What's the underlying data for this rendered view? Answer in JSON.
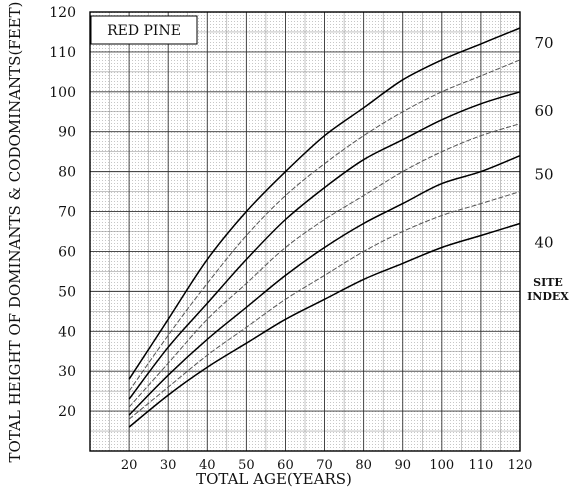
{
  "chart_data": {
    "type": "line",
    "title": "RED PINE",
    "xlabel": "TOTAL AGE(YEARS)",
    "ylabel": "TOTAL HEIGHT OF DOMINANTS & CODOMINANTS(FEET)",
    "xlim": [
      10,
      120
    ],
    "ylim": [
      10,
      120
    ],
    "x_ticks": [
      "20",
      "30",
      "40",
      "50",
      "60",
      "70",
      "80",
      "90",
      "100",
      "110",
      "120"
    ],
    "y_ticks": [
      "20",
      "30",
      "40",
      "50",
      "60",
      "70",
      "80",
      "90",
      "100",
      "110",
      "120"
    ],
    "grid": true,
    "right_axis_title": [
      "SITE",
      "INDEX"
    ],
    "right_labels": [
      {
        "label": "70",
        "value": 116
      },
      {
        "label": "60",
        "value": 99
      },
      {
        "label": "50",
        "value": 83
      },
      {
        "label": "40",
        "value": 66
      }
    ],
    "x": [
      20,
      30,
      40,
      50,
      60,
      70,
      80,
      90,
      100,
      110,
      120
    ],
    "series": [
      {
        "style": "solid",
        "values": [
          28,
          43,
          58,
          70,
          80,
          89,
          96,
          103,
          108,
          112,
          116
        ]
      },
      {
        "style": "dashed",
        "values": [
          25,
          39,
          52,
          64,
          74,
          82,
          89,
          95,
          100,
          104,
          108
        ]
      },
      {
        "style": "solid",
        "values": [
          23,
          36,
          47,
          58,
          68,
          76,
          83,
          88,
          93,
          97,
          100
        ]
      },
      {
        "style": "dashed",
        "values": [
          21,
          32,
          43,
          52,
          61,
          68,
          74,
          80,
          85,
          89,
          92
        ]
      },
      {
        "style": "solid",
        "values": [
          19,
          29,
          38,
          46,
          54,
          61,
          67,
          72,
          77,
          80,
          84
        ]
      },
      {
        "style": "dashed",
        "values": [
          18,
          26,
          34,
          41,
          48,
          54,
          60,
          65,
          69,
          72,
          75
        ]
      },
      {
        "style": "solid",
        "values": [
          16,
          24,
          31,
          37,
          43,
          48,
          53,
          57,
          61,
          64,
          67
        ]
      }
    ]
  }
}
